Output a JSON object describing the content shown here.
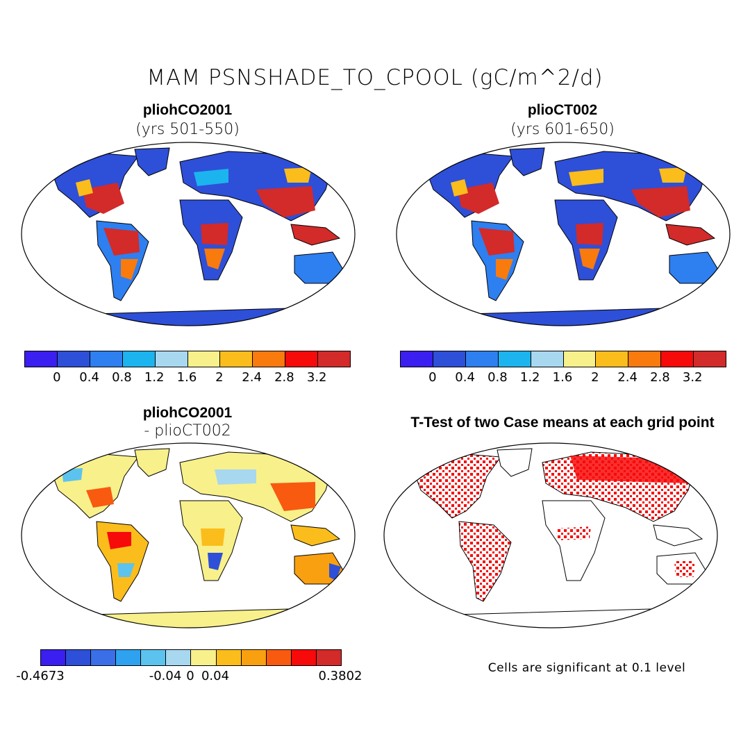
{
  "figure": {
    "main_title": "MAM PSNSHADE_TO_CPOOL (gC/m^2/d)",
    "panels": [
      {
        "id": "p1",
        "title": "pliohCO2001",
        "subtitle": "(yrs 501-550)",
        "colorbar": {
          "colors": [
            "#3a1ff0",
            "#2e4fd8",
            "#2e7ff0",
            "#1bb4ef",
            "#a8d8f0",
            "#f8f08a",
            "#fbbd1c",
            "#f97a0d",
            "#f70a0a",
            "#d32a2a"
          ],
          "labels": [
            "0",
            "0.4",
            "0.8",
            "1.2",
            "1.6",
            "2",
            "2.4",
            "2.8",
            "3.2"
          ]
        }
      },
      {
        "id": "p2",
        "title": "plioCT002",
        "subtitle": "(yrs 601-650)",
        "colorbar": {
          "colors": [
            "#3a1ff0",
            "#2e4fd8",
            "#2e7ff0",
            "#1bb4ef",
            "#a8d8f0",
            "#f8f08a",
            "#fbbd1c",
            "#f97a0d",
            "#f70a0a",
            "#d32a2a"
          ],
          "labels": [
            "0",
            "0.4",
            "0.8",
            "1.2",
            "1.6",
            "2",
            "2.4",
            "2.8",
            "3.2"
          ]
        }
      },
      {
        "id": "p3",
        "title": "pliohCO2001",
        "subtitle": "- plioCT002",
        "colorbar": {
          "colors": [
            "#3a1ff0",
            "#2e4fd8",
            "#3a6fe8",
            "#2ea2ef",
            "#5cc3ef",
            "#a8d8f0",
            "#f8f08a",
            "#fbbd1c",
            "#f9a010",
            "#f85a10",
            "#f70a0a",
            "#d32a2a"
          ],
          "labels": [
            "-0.4673",
            "-0.04",
            "0",
            "0.04",
            "0.3802"
          ]
        }
      },
      {
        "id": "p4",
        "title": "T-Test of two Case means at each grid point",
        "note": "Cells are significant at 0.1 level"
      }
    ]
  }
}
